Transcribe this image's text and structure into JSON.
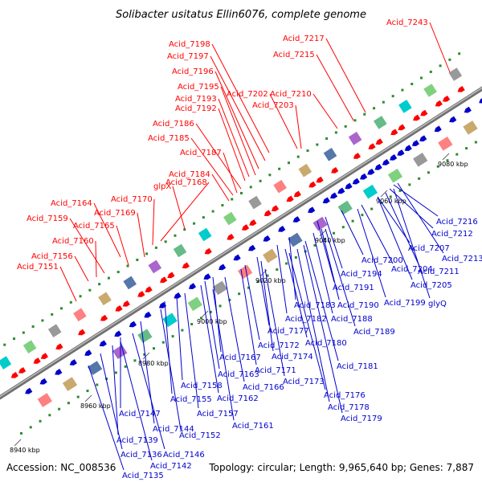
{
  "title": "Solibacter usitatus Ellin6076, complete genome",
  "accession": "Accession: NC_008536",
  "summary": "Topology: circular; Length: 9,965,640 bp; Genes: 7,887",
  "colors": {
    "top_strand": "#ff0000",
    "bottom_strand": "#0000cc",
    "backbone": "#888888",
    "tick": "#008800"
  },
  "ticks": [
    "8940 kbp",
    "8960 kbp",
    "8980 kbp",
    "9000 kbp",
    "9020 kbp",
    "9040 kbp",
    "9060 kbp",
    "9080 kbp"
  ],
  "top_labels": [
    "Acid_7243",
    "Acid_7217",
    "Acid_7215",
    "Acid_7198",
    "Acid_7197",
    "Acid_7196",
    "Acid_7195",
    "Acid_7202",
    "Acid_7210",
    "Acid_7193",
    "Acid_7203",
    "Acid_7192",
    "Acid_7186",
    "Acid_7185",
    "Acid_7187",
    "Acid_7184",
    "glpX",
    "Acid_7168",
    "Acid_7170",
    "Acid_7164",
    "Acid_7169",
    "Acid_7165",
    "Acid_7159",
    "Acid_7160",
    "Acid_7156",
    "Acid_7151"
  ],
  "bottom_labels": [
    "Acid_7216",
    "Acid_7212",
    "Acid_7207",
    "Acid_7213",
    "Acid_7200",
    "Acid_7204",
    "Acid_7211",
    "Acid_7194",
    "Acid_7205",
    "Acid_7191",
    "Acid_7199",
    "glyQ",
    "Acid_7183",
    "Acid_7190",
    "Acid_7182",
    "Acid_7188",
    "Acid_7177",
    "Acid_7189",
    "Acid_7172",
    "Acid_7180",
    "Acid_7167",
    "Acid_7174",
    "Acid_7171",
    "Acid_7181",
    "Acid_7163",
    "Acid_7173",
    "Acid_7158",
    "Acid_7166",
    "Acid_7162",
    "Acid_7176",
    "Acid_7155",
    "Acid_7157",
    "Acid_7178",
    "Acid_7161",
    "Acid_7179",
    "Acid_7147",
    "Acid_7144",
    "Acid_7152",
    "Acid_7139",
    "Acid_7136",
    "Acid_7146",
    "Acid_7142",
    "Acid_7135"
  ]
}
